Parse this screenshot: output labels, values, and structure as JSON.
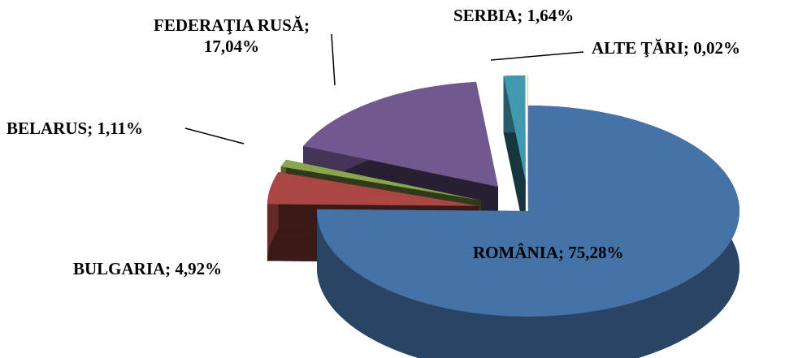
{
  "chart_data": {
    "type": "pie3d",
    "categories": [
      "ROMÂNIA",
      "BULGARIA",
      "BELARUS",
      "FEDERAŢIA RUSĂ",
      "SERBIA",
      "ALTE ŢĂRI"
    ],
    "values": [
      75.28,
      4.92,
      1.11,
      17.04,
      1.64,
      0.02
    ],
    "value_labels": [
      "ROMÂNIA; 75,28%",
      "BULGARIA; 4,92%",
      "BELARUS; 1,11%",
      "FEDERAŢIA RUSĂ; 17,04%",
      "SERBIA; 1,64%",
      "ALTE ŢĂRI; 0,02%"
    ],
    "colors": [
      "#4572a7",
      "#aa4643",
      "#89a54e",
      "#71588f",
      "#4198af",
      "#db843d"
    ]
  }
}
